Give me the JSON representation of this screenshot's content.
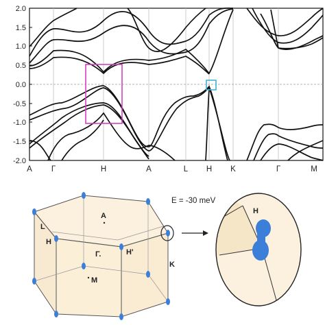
{
  "band_plot": {
    "y_ticks": [
      "2.0",
      "1.5",
      "1.0",
      "0.5",
      "0.0",
      "-0.5",
      "-1.0",
      "-1.5",
      "-2.0"
    ],
    "k_labels": [
      "A",
      "Γ",
      "H",
      "A",
      "L",
      "H",
      "K",
      "Γ",
      "M"
    ],
    "highlight_colors": {
      "magenta_box": "#d63fbf",
      "cyan_box": "#3fb3d6"
    }
  },
  "brillouin_zone": {
    "labels": {
      "A": "A",
      "L": "L",
      "H": "H",
      "Gamma": "Γ.",
      "H_prime": "H'",
      "K": "K",
      "M": "M"
    }
  },
  "energy_label": "E = -30 meV",
  "zoom": {
    "label": "H",
    "pocket_color": "#3b7fd9"
  },
  "colors": {
    "bz_fill": "#fbf1de",
    "bz_edge": "#555555",
    "band_line": "#111111",
    "pocket": "#3b7fd9"
  }
}
